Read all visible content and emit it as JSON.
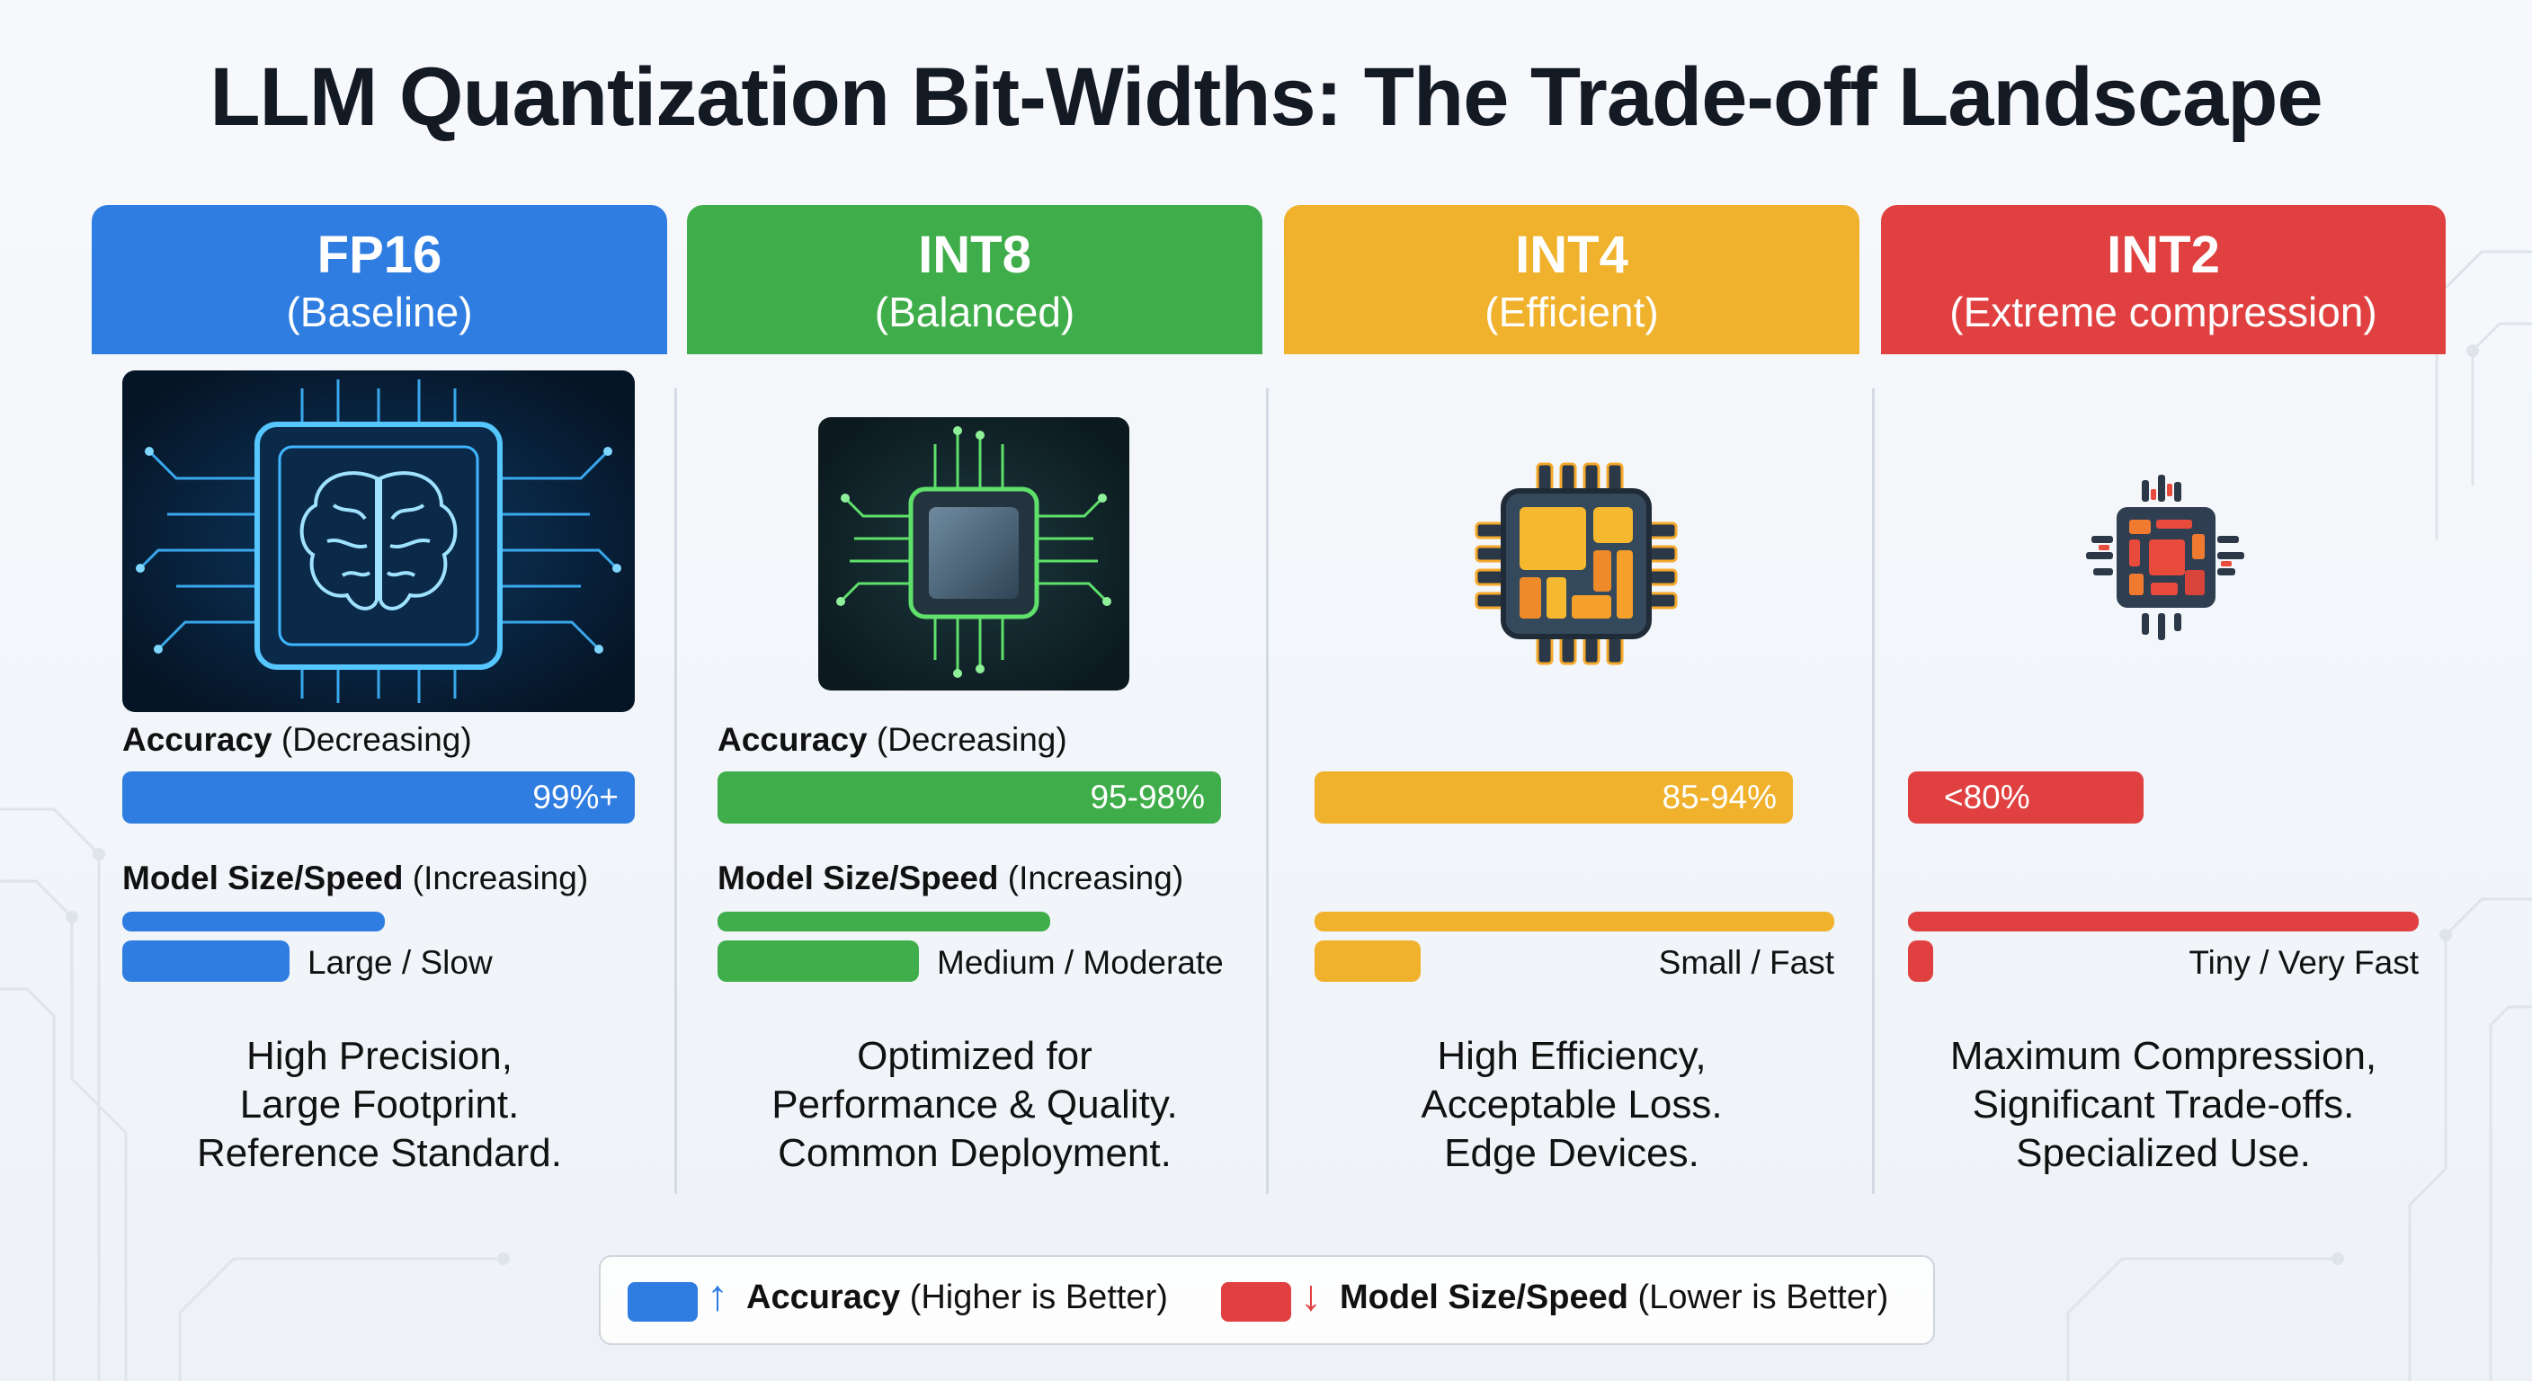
{
  "title": "LLM Quantization Bit-Widths: The Trade-off Landscape",
  "columns": [
    {
      "name": "FP16",
      "subtitle": "(Baseline)",
      "color": "#2f7de1",
      "icon": "brain-chip-icon",
      "accuracy_label": "Accuracy",
      "accuracy_qualifier": "(Decreasing)",
      "accuracy_value": "99%+",
      "size_label": "Model Size/Speed",
      "size_qualifier": "(Increasing)",
      "size_text": "Large / Slow",
      "description": [
        "High Precision,",
        "Large Footprint.",
        "Reference Standard."
      ]
    },
    {
      "name": "INT8",
      "subtitle": "(Balanced)",
      "color": "#3fae4a",
      "icon": "chip-icon",
      "accuracy_label": "Accuracy",
      "accuracy_qualifier": "(Decreasing)",
      "accuracy_value": "95-98%",
      "size_label": "Model Size/Speed",
      "size_qualifier": "(Increasing)",
      "size_text": "Medium / Moderate",
      "description": [
        "Optimized for",
        "Performance & Quality.",
        "Common Deployment."
      ]
    },
    {
      "name": "INT4",
      "subtitle": "(Efficient)",
      "color": "#f0b22c",
      "icon": "small-chip-icon",
      "accuracy_value": "85-94%",
      "size_text": "Small / Fast",
      "description": [
        "High Efficiency,",
        "Acceptable Loss.",
        "Edge Devices."
      ]
    },
    {
      "name": "INT2",
      "subtitle": "(Extreme compression)",
      "color": "#e04040",
      "icon": "tiny-chip-icon",
      "accuracy_value": "<80%",
      "size_text": "Tiny / Very Fast",
      "description": [
        "Maximum Compression,",
        "Significant Trade-offs.",
        "Specialized Use."
      ]
    }
  ],
  "legend": {
    "accuracy_label": "Accuracy",
    "accuracy_qualifier": "(Higher is Better)",
    "accuracy_color": "#2f7de1",
    "accuracy_arrow": "↑",
    "size_label": "Model Size/Speed",
    "size_qualifier": "(Lower is Better)",
    "size_color": "#e04040",
    "size_arrow": "↓"
  }
}
